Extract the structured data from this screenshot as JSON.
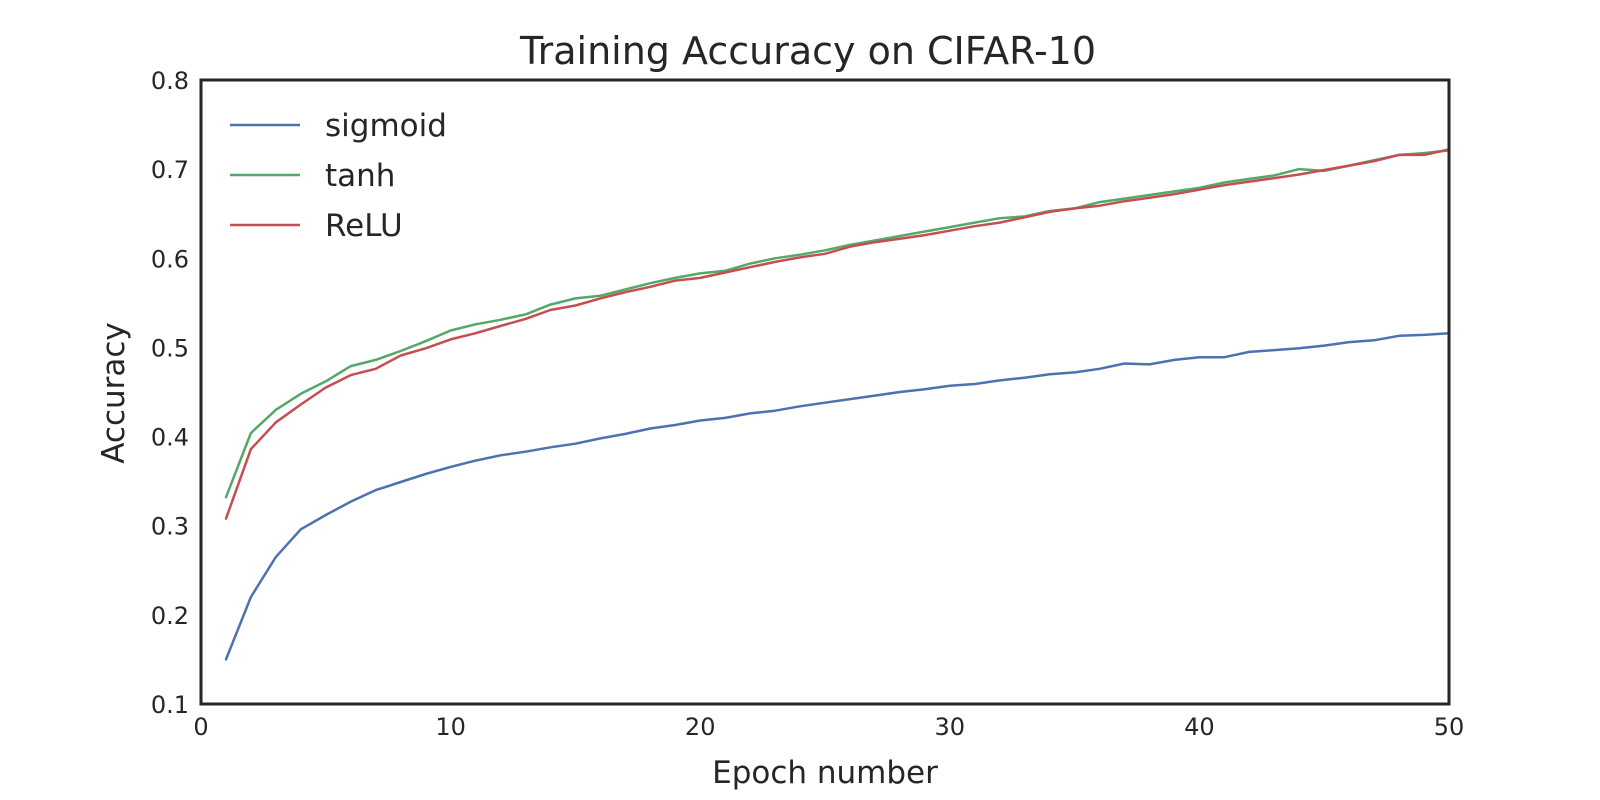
{
  "chart_data": {
    "type": "line",
    "title": "Training Accuracy on CIFAR-10",
    "xlabel": "Epoch number",
    "ylabel": "Accuracy",
    "xlim": [
      0,
      50
    ],
    "ylim": [
      0.1,
      0.8
    ],
    "xticks": [
      "0",
      "10",
      "20",
      "30",
      "40",
      "50"
    ],
    "yticks": [
      "0.1",
      "0.2",
      "0.3",
      "0.4",
      "0.5",
      "0.6",
      "0.7",
      "0.8"
    ],
    "grid": false,
    "legend_position": "top-left",
    "x": [
      1,
      2,
      3,
      4,
      5,
      6,
      7,
      8,
      9,
      10,
      11,
      12,
      13,
      14,
      15,
      16,
      17,
      18,
      19,
      20,
      21,
      22,
      23,
      24,
      25,
      26,
      27,
      28,
      29,
      30,
      31,
      32,
      33,
      34,
      35,
      36,
      37,
      38,
      39,
      40,
      41,
      42,
      43,
      44,
      45,
      46,
      47,
      48,
      49,
      50
    ],
    "series": [
      {
        "name": "sigmoid",
        "color": "#4c72b0",
        "values": [
          0.15,
          0.22,
          0.265,
          0.296,
          0.312,
          0.327,
          0.34,
          0.349,
          0.358,
          0.366,
          0.373,
          0.379,
          0.383,
          0.388,
          0.392,
          0.398,
          0.403,
          0.409,
          0.413,
          0.418,
          0.421,
          0.426,
          0.429,
          0.434,
          0.438,
          0.442,
          0.446,
          0.45,
          0.453,
          0.457,
          0.459,
          0.463,
          0.466,
          0.47,
          0.472,
          0.476,
          0.482,
          0.481,
          0.486,
          0.489,
          0.489,
          0.495,
          0.497,
          0.499,
          0.502,
          0.506,
          0.508,
          0.513,
          0.514,
          0.516
        ]
      },
      {
        "name": "tanh",
        "color": "#55a868",
        "values": [
          0.332,
          0.404,
          0.43,
          0.448,
          0.462,
          0.479,
          0.486,
          0.496,
          0.507,
          0.519,
          0.526,
          0.531,
          0.537,
          0.548,
          0.555,
          0.558,
          0.565,
          0.572,
          0.578,
          0.583,
          0.586,
          0.594,
          0.6,
          0.604,
          0.609,
          0.615,
          0.62,
          0.625,
          0.63,
          0.635,
          0.64,
          0.645,
          0.647,
          0.653,
          0.656,
          0.663,
          0.667,
          0.671,
          0.675,
          0.679,
          0.685,
          0.689,
          0.693,
          0.7,
          0.698,
          0.704,
          0.71,
          0.716,
          0.718,
          0.721
        ]
      },
      {
        "name": "ReLU",
        "color": "#c44e52",
        "values": [
          0.308,
          0.386,
          0.416,
          0.436,
          0.455,
          0.469,
          0.476,
          0.491,
          0.499,
          0.509,
          0.516,
          0.524,
          0.532,
          0.542,
          0.547,
          0.555,
          0.562,
          0.568,
          0.575,
          0.578,
          0.584,
          0.59,
          0.596,
          0.601,
          0.605,
          0.613,
          0.618,
          0.622,
          0.626,
          0.631,
          0.636,
          0.64,
          0.646,
          0.652,
          0.656,
          0.659,
          0.664,
          0.668,
          0.672,
          0.677,
          0.682,
          0.686,
          0.69,
          0.694,
          0.699,
          0.704,
          0.709,
          0.716,
          0.716,
          0.722
        ]
      }
    ]
  }
}
